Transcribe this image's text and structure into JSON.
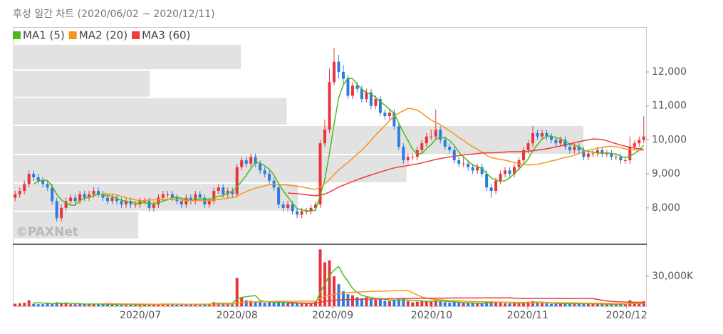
{
  "chart_data": {
    "type": "candlestick",
    "title": "후성 일간 차트 (2020/06/02 ~ 2020/12/11)",
    "watermark": "©PAXNet",
    "up_color": "#e8343a",
    "down_color": "#2b7be0",
    "ylim": [
      6950,
      13320
    ],
    "yticks": [
      {
        "value": 8000,
        "label": "8,000"
      },
      {
        "value": 9000,
        "label": "9,000"
      },
      {
        "value": 10000,
        "label": "10,000"
      },
      {
        "value": 11000,
        "label": "11,000"
      },
      {
        "value": 12000,
        "label": "12,000"
      }
    ],
    "xlim": [
      0,
      137
    ],
    "xticks": [
      {
        "value": 27.6,
        "label": "2020/07"
      },
      {
        "value": 48.5,
        "label": "2020/08"
      },
      {
        "value": 69.2,
        "label": "2020/09"
      },
      {
        "value": 90.6,
        "label": "2020/10"
      },
      {
        "value": 111.4,
        "label": "2020/11"
      },
      {
        "value": 132.8,
        "label": "2020/12"
      }
    ],
    "ma": [
      {
        "name": "MA1 (5)",
        "color": "#4cbb17",
        "window": 5
      },
      {
        "name": "MA2 (20)",
        "color": "#f7941d",
        "window": 20
      },
      {
        "name": "MA3 (60)",
        "color": "#ee3b3b",
        "window": 60
      }
    ],
    "volume_profile": {
      "bins": [
        7080,
        7900,
        8730,
        9570,
        10430,
        11250,
        12060,
        12820
      ],
      "values": [
        22,
        50,
        69,
        100,
        48,
        24,
        40
      ],
      "xlim": [
        0,
        111
      ],
      "color": "#e2e2e2"
    },
    "ohlc": [
      [
        8300,
        8500,
        8200,
        8400
      ],
      [
        8400,
        8600,
        8300,
        8500
      ],
      [
        8500,
        8800,
        8400,
        8700
      ],
      [
        8700,
        9100,
        8600,
        9000
      ],
      [
        9000,
        9100,
        8800,
        8900
      ],
      [
        8900,
        9000,
        8700,
        8800
      ],
      [
        8800,
        8900,
        8600,
        8700
      ],
      [
        8700,
        8800,
        8500,
        8600
      ],
      [
        8600,
        8700,
        8100,
        8200
      ],
      [
        8200,
        8300,
        7600,
        7700
      ],
      [
        7700,
        8100,
        7600,
        8000
      ],
      [
        8000,
        8300,
        7900,
        8200
      ],
      [
        8200,
        8400,
        8100,
        8300
      ],
      [
        8300,
        8400,
        8100,
        8200
      ],
      [
        8200,
        8500,
        8100,
        8400
      ],
      [
        8400,
        8500,
        8200,
        8300
      ],
      [
        8300,
        8500,
        8200,
        8400
      ],
      [
        8400,
        8600,
        8300,
        8500
      ],
      [
        8500,
        8600,
        8300,
        8400
      ],
      [
        8400,
        8500,
        8200,
        8300
      ],
      [
        8300,
        8400,
        8100,
        8200
      ],
      [
        8200,
        8400,
        8100,
        8300
      ],
      [
        8300,
        8400,
        8100,
        8200
      ],
      [
        8200,
        8300,
        8000,
        8100
      ],
      [
        8100,
        8300,
        8000,
        8200
      ],
      [
        8200,
        8300,
        8000,
        8100
      ],
      [
        8100,
        8200,
        8000,
        8100
      ],
      [
        8100,
        8300,
        8000,
        8200
      ],
      [
        8200,
        8300,
        8100,
        8200
      ],
      [
        8200,
        8300,
        7900,
        8000
      ],
      [
        8000,
        8200,
        7900,
        8100
      ],
      [
        8100,
        8400,
        8000,
        8300
      ],
      [
        8300,
        8500,
        8200,
        8400
      ],
      [
        8400,
        8500,
        8300,
        8400
      ],
      [
        8400,
        8500,
        8200,
        8300
      ],
      [
        8300,
        8400,
        8100,
        8200
      ],
      [
        8200,
        8300,
        8000,
        8100
      ],
      [
        8100,
        8400,
        8000,
        8300
      ],
      [
        8300,
        8400,
        8100,
        8200
      ],
      [
        8200,
        8500,
        8100,
        8400
      ],
      [
        8400,
        8500,
        8200,
        8300
      ],
      [
        8300,
        8400,
        8000,
        8100
      ],
      [
        8100,
        8300,
        8000,
        8200
      ],
      [
        8200,
        8600,
        8100,
        8500
      ],
      [
        8500,
        8700,
        8400,
        8600
      ],
      [
        8600,
        8700,
        8300,
        8400
      ],
      [
        8400,
        8600,
        8300,
        8500
      ],
      [
        8500,
        8600,
        8300,
        8400
      ],
      [
        8400,
        9300,
        8300,
        9200
      ],
      [
        9200,
        9500,
        9100,
        9400
      ],
      [
        9400,
        9500,
        9200,
        9300
      ],
      [
        9300,
        9600,
        9200,
        9500
      ],
      [
        9500,
        9600,
        9200,
        9300
      ],
      [
        9300,
        9400,
        9000,
        9100
      ],
      [
        9100,
        9200,
        8900,
        9000
      ],
      [
        9000,
        9100,
        8700,
        8800
      ],
      [
        8800,
        8900,
        8500,
        8600
      ],
      [
        8600,
        8700,
        8000,
        8100
      ],
      [
        8100,
        8200,
        7900,
        8000
      ],
      [
        8000,
        8200,
        7900,
        8100
      ],
      [
        8100,
        8200,
        7800,
        7900
      ],
      [
        7900,
        8000,
        7700,
        7800
      ],
      [
        7800,
        8000,
        7700,
        7900
      ],
      [
        7900,
        8000,
        7800,
        7900
      ],
      [
        7900,
        8100,
        7800,
        8000
      ],
      [
        8000,
        8200,
        7900,
        8100
      ],
      [
        8100,
        10000,
        8000,
        9900
      ],
      [
        9900,
        10600,
        9800,
        10300
      ],
      [
        10300,
        12100,
        10200,
        11700
      ],
      [
        11700,
        12700,
        11600,
        12300
      ],
      [
        12300,
        12500,
        11800,
        12000
      ],
      [
        12000,
        12200,
        11600,
        11800
      ],
      [
        11800,
        11900,
        11200,
        11300
      ],
      [
        11300,
        11700,
        11200,
        11600
      ],
      [
        11600,
        11700,
        11400,
        11500
      ],
      [
        11500,
        11600,
        11100,
        11200
      ],
      [
        11200,
        11500,
        11100,
        11400
      ],
      [
        11400,
        11500,
        10900,
        11000
      ],
      [
        11000,
        11300,
        10900,
        11200
      ],
      [
        11200,
        11300,
        10700,
        10800
      ],
      [
        10800,
        10900,
        10600,
        10700
      ],
      [
        10700,
        10900,
        10600,
        10800
      ],
      [
        10800,
        10900,
        10300,
        10400
      ],
      [
        10400,
        10500,
        9700,
        9800
      ],
      [
        9800,
        9900,
        9300,
        9400
      ],
      [
        9400,
        9600,
        9300,
        9500
      ],
      [
        9500,
        9600,
        9400,
        9500
      ],
      [
        9500,
        9800,
        9400,
        9700
      ],
      [
        9700,
        10000,
        9600,
        9900
      ],
      [
        9900,
        10200,
        9800,
        10100
      ],
      [
        10100,
        10300,
        10000,
        10100
      ],
      [
        10100,
        10900,
        10000,
        10300
      ],
      [
        10300,
        10400,
        9900,
        10000
      ],
      [
        10000,
        10100,
        9700,
        9800
      ],
      [
        9800,
        9900,
        9600,
        9700
      ],
      [
        9700,
        9800,
        9300,
        9400
      ],
      [
        9400,
        9500,
        9200,
        9300
      ],
      [
        9300,
        9500,
        9200,
        9300
      ],
      [
        9300,
        9400,
        9100,
        9200
      ],
      [
        9200,
        9300,
        9000,
        9100
      ],
      [
        9100,
        9300,
        9000,
        9200
      ],
      [
        9200,
        9300,
        8900,
        9000
      ],
      [
        9000,
        9100,
        8500,
        8600
      ],
      [
        8600,
        8700,
        8300,
        8500
      ],
      [
        8500,
        8900,
        8400,
        8800
      ],
      [
        8800,
        9100,
        8700,
        9000
      ],
      [
        9000,
        9200,
        8900,
        9100
      ],
      [
        9100,
        9200,
        8900,
        9000
      ],
      [
        9000,
        9300,
        8900,
        9200
      ],
      [
        9200,
        9500,
        9100,
        9400
      ],
      [
        9400,
        9800,
        9300,
        9700
      ],
      [
        9700,
        10000,
        9600,
        9900
      ],
      [
        9900,
        10400,
        9800,
        10200
      ],
      [
        10200,
        10300,
        10000,
        10100
      ],
      [
        10100,
        10300,
        10000,
        10200
      ],
      [
        10200,
        10300,
        10000,
        10100
      ],
      [
        10100,
        10200,
        9900,
        10000
      ],
      [
        10000,
        10100,
        9800,
        9900
      ],
      [
        9900,
        10100,
        9800,
        10000
      ],
      [
        10000,
        10100,
        9700,
        9800
      ],
      [
        9800,
        9900,
        9600,
        9700
      ],
      [
        9700,
        9900,
        9600,
        9800
      ],
      [
        9800,
        9900,
        9600,
        9700
      ],
      [
        9700,
        9800,
        9400,
        9500
      ],
      [
        9500,
        9700,
        9400,
        9600
      ],
      [
        9600,
        9700,
        9500,
        9600
      ],
      [
        9600,
        9800,
        9500,
        9700
      ],
      [
        9700,
        9800,
        9500,
        9600
      ],
      [
        9600,
        9700,
        9500,
        9600
      ],
      [
        9600,
        9700,
        9400,
        9500
      ],
      [
        9500,
        9600,
        9400,
        9500
      ],
      [
        9500,
        9600,
        9300,
        9400
      ],
      [
        9400,
        9500,
        9300,
        9400
      ],
      [
        9400,
        10100,
        9300,
        9800
      ],
      [
        9800,
        10000,
        9700,
        9900
      ],
      [
        9900,
        10100,
        9800,
        10000
      ],
      [
        10000,
        10700,
        9900,
        10100
      ]
    ],
    "volume": [
      2500,
      3000,
      3500,
      6000,
      2500,
      2000,
      2000,
      2500,
      3000,
      4000,
      3500,
      2500,
      2000,
      2000,
      2500,
      2000,
      2000,
      2500,
      2000,
      1800,
      1800,
      2000,
      1800,
      1700,
      1800,
      1700,
      1600,
      1800,
      1800,
      2000,
      1800,
      2500,
      2600,
      2000,
      1800,
      1800,
      2000,
      2200,
      1800,
      2200,
      2000,
      2200,
      2000,
      4000,
      3500,
      2500,
      2200,
      2000,
      28500,
      9000,
      6000,
      5500,
      4500,
      4000,
      3500,
      4000,
      3800,
      5000,
      3500,
      3000,
      3000,
      2800,
      2500,
      2600,
      3000,
      4500,
      57000,
      44000,
      46000,
      30000,
      22000,
      15000,
      12000,
      11000,
      9000,
      8000,
      9000,
      7000,
      6500,
      7000,
      5500,
      5000,
      6000,
      7000,
      8000,
      5000,
      4000,
      4500,
      5000,
      5500,
      5000,
      6000,
      4500,
      4000,
      3500,
      4500,
      3500,
      3000,
      3000,
      3000,
      2800,
      3500,
      4500,
      5000,
      4000,
      3500,
      3000,
      2800,
      3000,
      3500,
      4000,
      4500,
      5000,
      3500,
      3000,
      2800,
      2500,
      2500,
      2400,
      2600,
      2500,
      2400,
      2500,
      3000,
      2500,
      2200,
      2000,
      2000,
      2200,
      2000,
      2000,
      2500,
      2000,
      6000,
      4000,
      3000,
      5000
    ],
    "volume_ylim": [
      0,
      60000
    ],
    "volume_yticks": [
      {
        "value": 30000,
        "label": "30,000K"
      }
    ]
  }
}
